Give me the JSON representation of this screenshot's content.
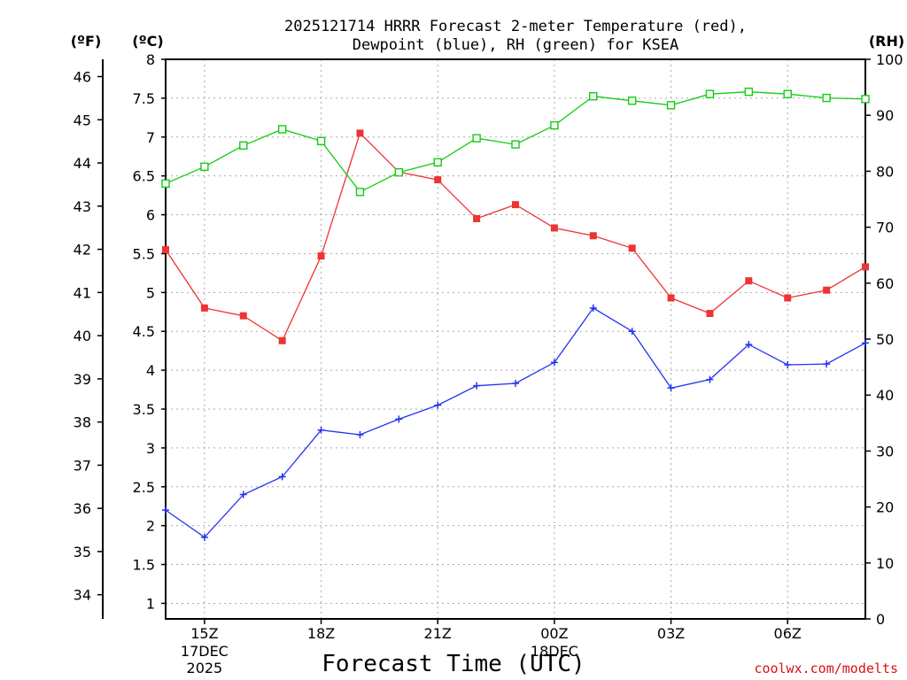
{
  "chart_data": {
    "type": "line",
    "title_line1": "2025121714 HRRR Forecast 2-meter Temperature (red),",
    "title_line2": "Dewpoint (blue), RH (green) for KSEA",
    "xlabel": "Forecast Time (UTC)",
    "credit": "coolwx.com/modelts",
    "units": {
      "left_outer": "(ºF)",
      "left_inner": "(ºC)",
      "right": "(RH)"
    },
    "x_hours": [
      14,
      15,
      16,
      17,
      18,
      19,
      20,
      21,
      22,
      23,
      24,
      25,
      26,
      27,
      28,
      29,
      30,
      31,
      32
    ],
    "xlim": [
      14,
      32
    ],
    "x_ticks": [
      {
        "hour": 15,
        "label": "15Z",
        "sub1": "17DEC",
        "sub2": "2025"
      },
      {
        "hour": 18,
        "label": "18Z"
      },
      {
        "hour": 21,
        "label": "21Z"
      },
      {
        "hour": 24,
        "label": "00Z",
        "sub1": "18DEC"
      },
      {
        "hour": 27,
        "label": "03Z"
      },
      {
        "hour": 30,
        "label": "06Z"
      }
    ],
    "celsius_axis": {
      "ylim": [
        0.8,
        8.0
      ],
      "ticks": [
        "1",
        "1.5",
        "2",
        "2.5",
        "3",
        "3.5",
        "4",
        "4.5",
        "5",
        "5.5",
        "6",
        "6.5",
        "7",
        "7.5",
        "8"
      ]
    },
    "fahrenheit_axis": {
      "ticks": [
        "34",
        "35",
        "36",
        "37",
        "38",
        "39",
        "40",
        "41",
        "42",
        "43",
        "44",
        "45",
        "46"
      ]
    },
    "rh_axis": {
      "ylim": [
        0,
        100
      ],
      "ticks": [
        "0",
        "10",
        "20",
        "30",
        "40",
        "50",
        "60",
        "70",
        "80",
        "90",
        "100"
      ]
    },
    "series": [
      {
        "name": "Temperature",
        "axis": "C",
        "color": "#ee3333",
        "marker": "filled-square",
        "values": [
          5.55,
          4.8,
          4.7,
          4.38,
          5.47,
          7.05,
          6.55,
          6.45,
          5.95,
          6.13,
          5.83,
          5.73,
          5.57,
          4.93,
          4.73,
          5.15,
          4.93,
          5.03,
          5.33
        ]
      },
      {
        "name": "Dewpoint",
        "axis": "C",
        "color": "#2233ee",
        "marker": "plus",
        "values": [
          2.2,
          1.85,
          2.4,
          2.63,
          3.23,
          3.17,
          3.37,
          3.55,
          3.8,
          3.83,
          4.1,
          4.8,
          4.5,
          3.77,
          3.88,
          4.33,
          4.07,
          4.08,
          4.35
        ]
      },
      {
        "name": "RH",
        "axis": "RH",
        "color": "#11cc11",
        "marker": "open-square",
        "values": [
          77.8,
          80.8,
          84.6,
          87.5,
          85.4,
          76.3,
          79.8,
          81.6,
          85.9,
          84.8,
          88.2,
          93.4,
          92.6,
          91.8,
          93.8,
          94.2,
          93.8,
          93.1,
          92.9
        ]
      }
    ]
  }
}
